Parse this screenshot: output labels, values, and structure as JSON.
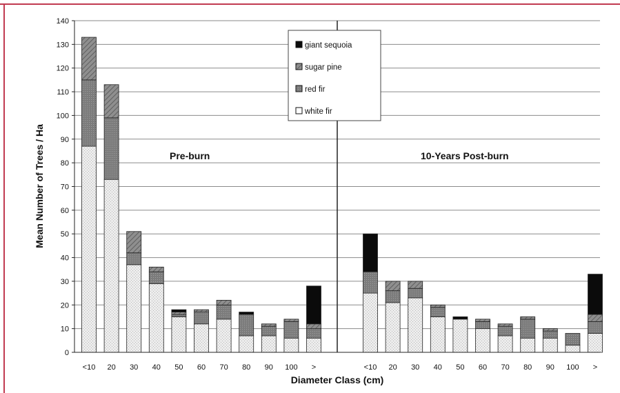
{
  "colors": {
    "frame": "#c0394f",
    "giant_sequoia": "#0b0b0b",
    "sugar_pine": "#8f8f8f",
    "red_fir": "#7a7a7a",
    "white_fir": "#ececec",
    "gridline": "#8a8a8a"
  },
  "chart_data": {
    "type": "bar",
    "stacked": true,
    "xlabel": "Diameter Class (cm)",
    "ylabel": "Mean Number of Trees / Ha",
    "ylim": [
      0,
      140
    ],
    "yticks": [
      0,
      10,
      20,
      30,
      40,
      50,
      60,
      70,
      80,
      90,
      100,
      110,
      120,
      130,
      140
    ],
    "grid": true,
    "legend_position": "top-center",
    "legend": [
      "giant sequoia",
      "sugar pine",
      "red fir",
      "white fir"
    ],
    "annotations": [
      "Pre-burn",
      "10-Years Post-burn"
    ],
    "groups": [
      {
        "annotation": "Pre-burn",
        "categories": [
          "<10",
          "20",
          "30",
          "40",
          "50",
          "60",
          "70",
          "80",
          "90",
          "100",
          ">"
        ],
        "series": [
          {
            "name": "white fir",
            "values": [
              87,
              73,
              37,
              29,
              15,
              12,
              14,
              7,
              7,
              6,
              6
            ]
          },
          {
            "name": "red fir",
            "values": [
              28,
              26,
              5,
              5,
              1,
              5,
              6,
              9,
              4,
              7,
              4
            ]
          },
          {
            "name": "sugar pine",
            "values": [
              18,
              14,
              9,
              2,
              1,
              1,
              2,
              0,
              1,
              1,
              2
            ]
          },
          {
            "name": "giant sequoia",
            "values": [
              0,
              0,
              0,
              0,
              1,
              0,
              0,
              1,
              0,
              0,
              16
            ]
          }
        ]
      },
      {
        "annotation": "10-Years Post-burn",
        "categories": [
          "<10",
          "20",
          "30",
          "40",
          "50",
          "60",
          "70",
          "80",
          "90",
          "100",
          ">"
        ],
        "series": [
          {
            "name": "white fir",
            "values": [
              25,
              21,
              23,
              15,
              14,
              10,
              7,
              6,
              6,
              3,
              8
            ]
          },
          {
            "name": "red fir",
            "values": [
              9,
              5,
              4,
              4,
              0,
              3,
              4,
              8,
              3,
              5,
              5
            ]
          },
          {
            "name": "sugar pine",
            "values": [
              0,
              4,
              3,
              1,
              0,
              1,
              1,
              1,
              1,
              0,
              3
            ]
          },
          {
            "name": "giant sequoia",
            "values": [
              16,
              0,
              0,
              0,
              1,
              0,
              0,
              0,
              0,
              0,
              17
            ]
          }
        ]
      }
    ]
  }
}
